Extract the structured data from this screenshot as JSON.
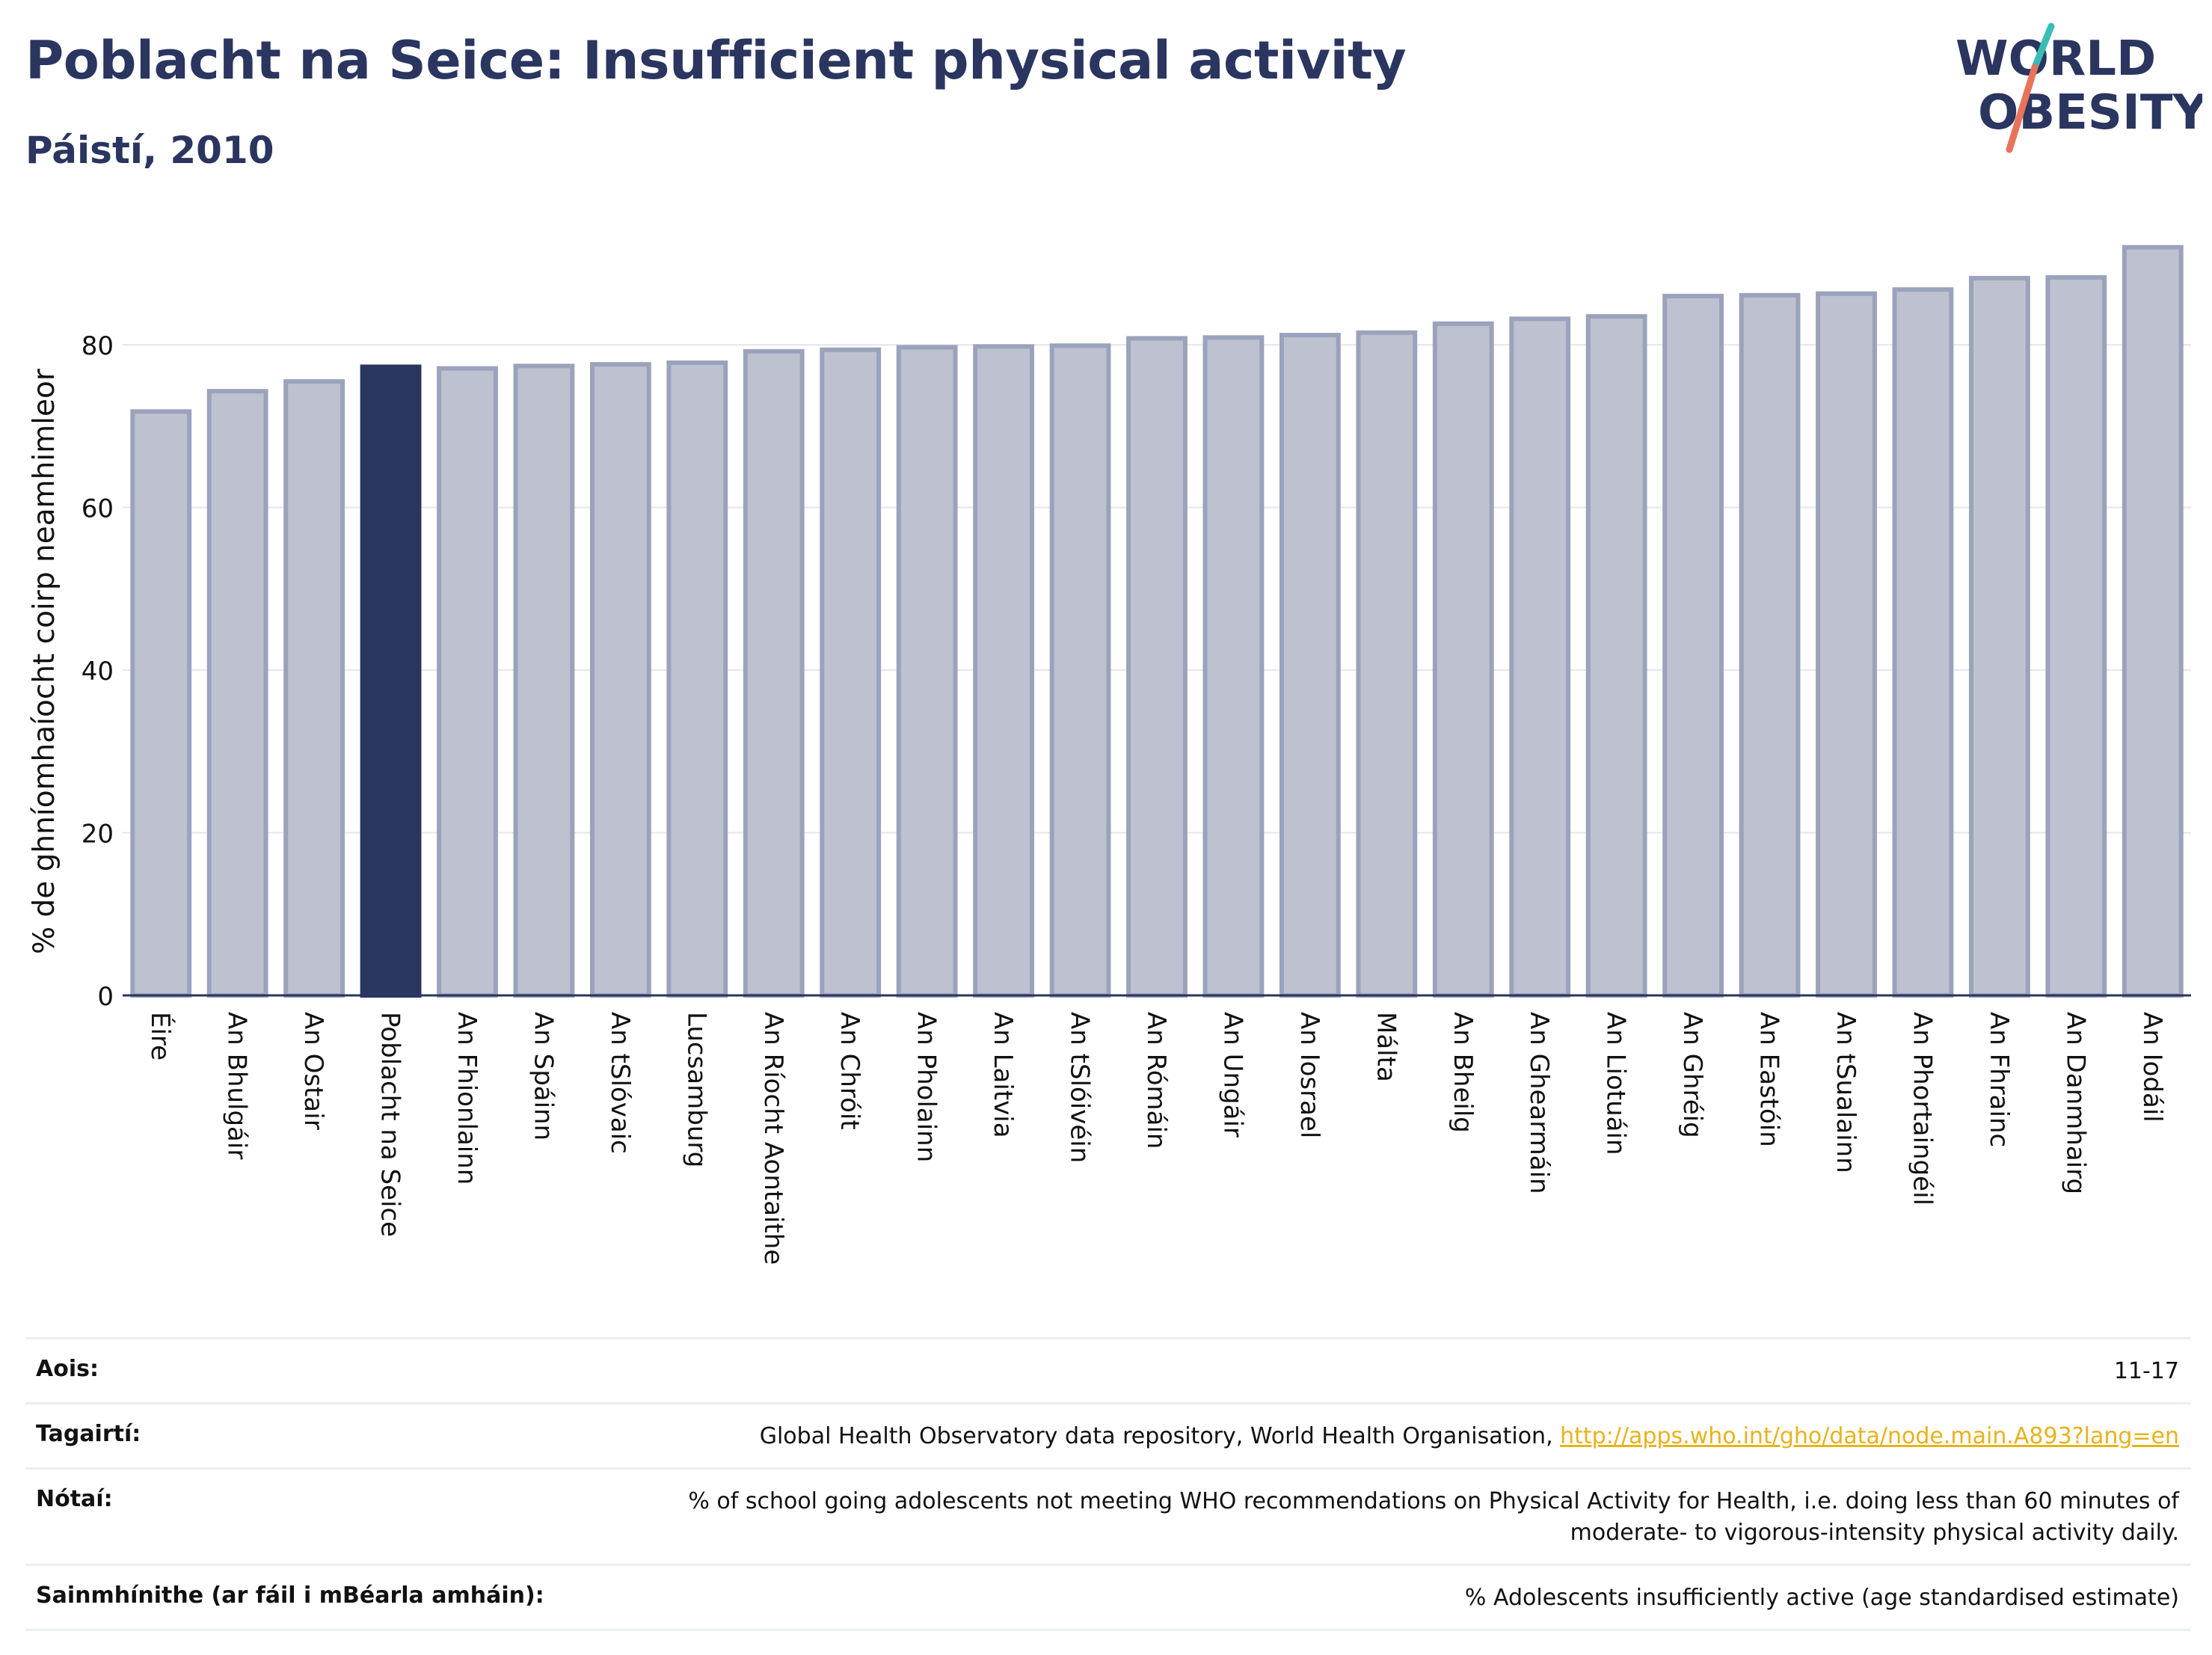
{
  "header": {
    "title": "Poblacht na Seice: Insufficient physical activity",
    "subtitle": "Páistí, 2010"
  },
  "logo": {
    "line1": "WORLD",
    "line2": "OBESITY",
    "colors": {
      "text": "#2a3560",
      "slash_red": "#e8735a",
      "slash_teal": "#3bbcb5"
    }
  },
  "chart_data": {
    "type": "bar",
    "ylabel": "% de ghníomhaíocht coirp neamhimleor",
    "xlabel": "",
    "ylim": [
      0,
      95
    ],
    "yticks": [
      0,
      20,
      40,
      60,
      80
    ],
    "grid": true,
    "categories": [
      "Éire",
      "An Bhulgáir",
      "An Ostair",
      "Poblacht na Seice",
      "An Fhionlainn",
      "An Spáinn",
      "An tSlóvaic",
      "Lucsamburg",
      "An Ríocht Aontaithe",
      "An Chróit",
      "An Pholainn",
      "An Laitvia",
      "An tSlóivéin",
      "An Rómáin",
      "An Ungáir",
      "An Iosrael",
      "Málta",
      "An Bheilg",
      "An Ghearmáin",
      "An Liotuáin",
      "An Ghréig",
      "An Eastóin",
      "An tSualainn",
      "An Phortaingéil",
      "An Fhrainc",
      "An Danmhairg",
      "An Iodáil"
    ],
    "values": [
      71.8,
      74.3,
      75.5,
      77.3,
      77.1,
      77.4,
      77.6,
      77.8,
      79.2,
      79.4,
      79.7,
      79.8,
      79.9,
      80.8,
      80.9,
      81.2,
      81.5,
      82.6,
      83.2,
      83.5,
      86.0,
      86.1,
      86.3,
      86.8,
      88.2,
      88.3,
      92.0
    ],
    "highlight_index": 3,
    "colors": {
      "bar": "#bec1d0",
      "bar_edge": "#9ba2bb",
      "highlight": "#2a3560",
      "grid": "#e5e6ec",
      "axis": "#2a3560"
    }
  },
  "info": [
    {
      "label": "Aois:",
      "value": "11-17"
    },
    {
      "label": "Tagairtí:",
      "value": "Global Health Observatory data repository, World Health Organisation, ",
      "link": "http://apps.who.int/gho/data/node.main.A893?lang=en"
    },
    {
      "label": "Nótaí:",
      "value": "% of school going adolescents not meeting WHO recommendations on Physical Activity for Health, i.e. doing less than 60 minutes of moderate- to vigorous-intensity physical activity daily."
    },
    {
      "label": "Sainmhínithe (ar fáil i mBéarla amháin):",
      "value": "% Adolescents insufficiently active (age standardised estimate)"
    }
  ]
}
